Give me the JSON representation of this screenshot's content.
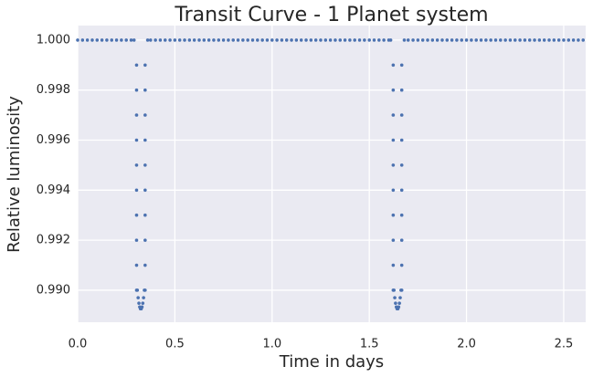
{
  "chart_data": {
    "type": "scatter",
    "title": "Transit Curve - 1 Planet system",
    "x_label": "Time in days",
    "y_label": "Relative luminosity",
    "color": "#4c72b0",
    "grid": true,
    "xlim": [
      0,
      2.613
    ],
    "ylim": [
      0.98872,
      1.00058
    ],
    "xticks": [
      {
        "value": 0,
        "label": "0.0"
      },
      0.5,
      {
        "value": 1,
        "label": "1.0"
      },
      1.5,
      {
        "value": 2,
        "label": "2.0"
      },
      2.5
    ],
    "yticks": [
      {
        "value": 0.99,
        "label": "0.990"
      },
      {
        "value": 0.992,
        "label": "0.992"
      },
      {
        "value": 0.994,
        "label": "0.994"
      },
      {
        "value": 0.996,
        "label": "0.996"
      },
      {
        "value": 0.998,
        "label": "0.998"
      },
      {
        "value": 1,
        "label": "1.000"
      }
    ],
    "x": [
      0,
      0.025,
      0.05,
      0.075,
      0.1,
      0.125,
      0.15,
      0.175,
      0.2,
      0.225,
      0.25,
      0.275,
      0.29,
      0.303,
      0.303,
      0.303,
      0.303,
      0.303,
      0.303,
      0.303,
      0.303,
      0.303,
      0.303,
      0.307,
      0.311,
      0.315,
      0.319,
      0.323,
      0.327,
      0.331,
      0.335,
      0.339,
      0.343,
      0.347,
      0.347,
      0.347,
      0.347,
      0.347,
      0.347,
      0.347,
      0.347,
      0.347,
      0.347,
      0.36,
      0.375,
      0.4,
      0.425,
      0.45,
      0.475,
      0.5,
      0.525,
      0.55,
      0.575,
      0.6,
      0.625,
      0.65,
      0.675,
      0.7,
      0.725,
      0.75,
      0.775,
      0.8,
      0.825,
      0.85,
      0.875,
      0.9,
      0.925,
      0.95,
      0.975,
      1.0,
      1.025,
      1.05,
      1.075,
      1.1,
      1.125,
      1.15,
      1.175,
      1.2,
      1.225,
      1.25,
      1.275,
      1.3,
      1.325,
      1.35,
      1.375,
      1.4,
      1.425,
      1.45,
      1.475,
      1.5,
      1.525,
      1.55,
      1.575,
      1.6,
      1.61,
      1.623,
      1.623,
      1.623,
      1.623,
      1.623,
      1.623,
      1.623,
      1.623,
      1.623,
      1.623,
      1.627,
      1.631,
      1.635,
      1.639,
      1.643,
      1.647,
      1.651,
      1.655,
      1.659,
      1.663,
      1.667,
      1.667,
      1.667,
      1.667,
      1.667,
      1.667,
      1.667,
      1.667,
      1.667,
      1.667,
      1.68,
      1.7,
      1.725,
      1.75,
      1.775,
      1.8,
      1.825,
      1.85,
      1.875,
      1.9,
      1.925,
      1.95,
      1.975,
      2.0,
      2.025,
      2.05,
      2.075,
      2.1,
      2.125,
      2.15,
      2.175,
      2.2,
      2.225,
      2.25,
      2.275,
      2.3,
      2.325,
      2.35,
      2.375,
      2.4,
      2.425,
      2.45,
      2.475,
      2.5,
      2.525,
      2.55,
      2.575,
      2.6
    ],
    "values": [
      1,
      1,
      1,
      1,
      1,
      1,
      1,
      1,
      1,
      1,
      1,
      1,
      1,
      0.999,
      0.998,
      0.997,
      0.996,
      0.995,
      0.994,
      0.993,
      0.992,
      0.991,
      0.99,
      0.99,
      0.9897,
      0.98948,
      0.98933,
      0.98926,
      0.98926,
      0.98933,
      0.98948,
      0.9897,
      0.99,
      0.99,
      0.991,
      0.992,
      0.993,
      0.994,
      0.995,
      0.996,
      0.997,
      0.998,
      0.999,
      1,
      1,
      1,
      1,
      1,
      1,
      1,
      1,
      1,
      1,
      1,
      1,
      1,
      1,
      1,
      1,
      1,
      1,
      1,
      1,
      1,
      1,
      1,
      1,
      1,
      1,
      1,
      1,
      1,
      1,
      1,
      1,
      1,
      1,
      1,
      1,
      1,
      1,
      1,
      1,
      1,
      1,
      1,
      1,
      1,
      1,
      1,
      1,
      1,
      1,
      1,
      1,
      0.999,
      0.998,
      0.997,
      0.996,
      0.995,
      0.994,
      0.993,
      0.992,
      0.991,
      0.99,
      0.99,
      0.9897,
      0.98948,
      0.98933,
      0.98926,
      0.98926,
      0.98933,
      0.98948,
      0.9897,
      0.99,
      0.99,
      0.991,
      0.992,
      0.993,
      0.994,
      0.995,
      0.996,
      0.997,
      0.998,
      0.999,
      1,
      1,
      1,
      1,
      1,
      1,
      1,
      1,
      1,
      1,
      1,
      1,
      1,
      1,
      1,
      1,
      1,
      1,
      1,
      1,
      1,
      1,
      1,
      1,
      1,
      1,
      1,
      1,
      1,
      1,
      1,
      1,
      1,
      1,
      1,
      1,
      1,
      1
    ]
  }
}
